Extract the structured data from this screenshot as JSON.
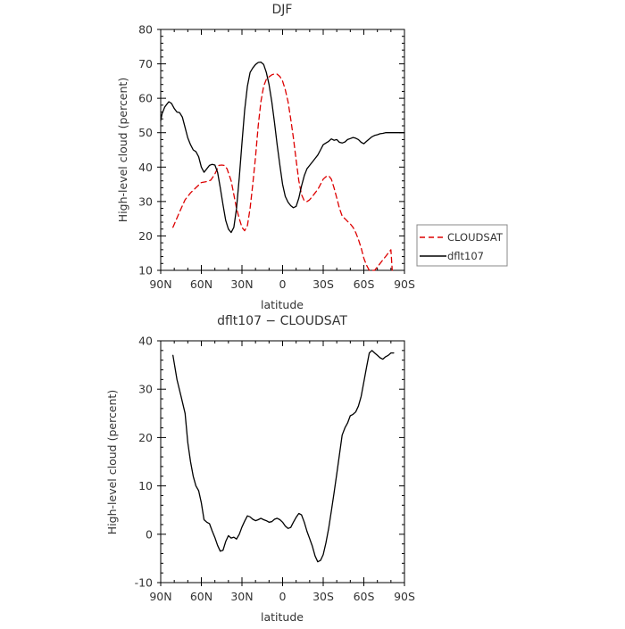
{
  "chart_data": [
    {
      "type": "line",
      "title": "DJF",
      "xlabel": "latitude",
      "ylabel": "High-level cloud (percent)",
      "ylim": [
        10,
        80
      ],
      "xlim": [
        90,
        -90
      ],
      "x_direction": "90N on the left, 90S on the right",
      "xticks": [
        {
          "value": 90,
          "label": "90N"
        },
        {
          "value": 60,
          "label": "60N"
        },
        {
          "value": 30,
          "label": "30N"
        },
        {
          "value": 0,
          "label": "0"
        },
        {
          "value": -30,
          "label": "30S"
        },
        {
          "value": -60,
          "label": "60S"
        },
        {
          "value": -90,
          "label": "90S"
        }
      ],
      "yticks": [
        10,
        20,
        30,
        40,
        50,
        60,
        70,
        80
      ],
      "grid": false,
      "legend_placement": "outside-right",
      "series": [
        {
          "name": "CLOUDSAT",
          "color": "#dd0000",
          "dash": "dashed",
          "x": [
            81,
            76,
            72,
            68,
            64,
            60,
            56,
            53,
            50,
            47,
            45,
            43,
            41,
            38,
            36,
            34,
            32,
            30,
            28,
            26,
            24,
            22,
            20,
            18,
            16,
            14,
            12,
            10,
            8,
            6,
            4,
            2,
            0,
            -2,
            -4,
            -6,
            -8,
            -10,
            -12,
            -14,
            -16,
            -18,
            -20,
            -22,
            -24,
            -26,
            -28,
            -30,
            -32,
            -34,
            -36,
            -38,
            -40,
            -42,
            -44,
            -46,
            -48,
            -50,
            -52,
            -54,
            -56,
            -58,
            -60,
            -62,
            -64,
            -66,
            -68,
            -70,
            -72,
            -74,
            -76,
            -78,
            -80,
            -81
          ],
          "y": [
            22.5,
            27,
            30.5,
            32.5,
            34,
            35.5,
            35.8,
            36.2,
            38,
            40.5,
            40.6,
            40.5,
            39.5,
            36,
            32,
            28,
            25,
            22.5,
            21.5,
            23,
            28,
            35,
            43,
            52,
            59,
            63.5,
            65.5,
            66.2,
            66.8,
            67.1,
            67,
            66.3,
            65,
            62.5,
            59,
            54,
            48.5,
            42,
            36,
            32,
            30.2,
            30,
            30.5,
            31.5,
            32.5,
            33.5,
            35,
            36.5,
            37.2,
            37.5,
            36.5,
            34,
            31,
            28,
            25.8,
            25,
            24.2,
            23.5,
            22.5,
            21,
            19,
            16.5,
            13.5,
            11.5,
            10,
            9.6,
            10,
            11,
            12,
            13,
            14,
            15,
            16,
            10
          ]
        },
        {
          "name": "dflt107",
          "color": "#000000",
          "dash": "solid",
          "x": [
            90,
            89,
            87,
            85,
            84,
            82,
            80,
            78,
            76,
            74,
            72,
            70,
            68,
            66,
            64,
            62,
            60,
            58,
            56,
            54,
            52,
            50,
            48,
            46,
            44,
            42,
            40,
            38,
            36,
            34,
            32,
            30,
            28,
            26,
            24,
            22,
            20,
            18,
            16,
            14,
            12,
            10,
            8,
            6,
            4,
            2,
            0,
            -2,
            -4,
            -6,
            -8,
            -10,
            -12,
            -14,
            -16,
            -18,
            -20,
            -22,
            -24,
            -26,
            -28,
            -30,
            -32,
            -34,
            -36,
            -38,
            -40,
            -42,
            -44,
            -46,
            -48,
            -50,
            -52,
            -54,
            -56,
            -58,
            -60,
            -62,
            -64,
            -66,
            -68,
            -70,
            -72,
            -74,
            -76,
            -78,
            -80,
            -82,
            -84,
            -86,
            -88,
            -90
          ],
          "y": [
            53.5,
            55.5,
            57.5,
            58.5,
            59,
            58.5,
            57,
            56,
            55.8,
            54.5,
            51.5,
            48.5,
            46.5,
            45,
            44.5,
            43,
            40,
            38.5,
            39.5,
            40.5,
            40.8,
            40.6,
            38.5,
            34,
            29,
            24.5,
            22,
            21,
            22.5,
            28,
            37,
            47,
            56.5,
            63.5,
            67.5,
            68.8,
            69.8,
            70.4,
            70.5,
            69.8,
            67.5,
            64,
            59,
            53,
            46.5,
            40.5,
            35,
            31.5,
            29.8,
            28.8,
            28.2,
            28.6,
            31,
            34.5,
            37.5,
            39.5,
            40.5,
            41.5,
            42.5,
            43.5,
            45,
            46.5,
            47,
            47.5,
            48.2,
            47.8,
            48,
            47.2,
            47,
            47.3,
            48,
            48.3,
            48.6,
            48.4,
            48,
            47.2,
            46.8,
            47.5,
            48.2,
            48.8,
            49.2,
            49.4,
            49.7,
            49.8,
            50,
            50,
            50,
            50,
            50,
            50,
            50,
            50
          ]
        }
      ]
    },
    {
      "type": "line",
      "title": "dflt107 − CLOUDSAT",
      "xlabel": "latitude",
      "ylabel": "High-level cloud (percent)",
      "ylim": [
        -10,
        40
      ],
      "xlim": [
        90,
        -90
      ],
      "xticks": [
        {
          "value": 90,
          "label": "90N"
        },
        {
          "value": 60,
          "label": "60N"
        },
        {
          "value": 30,
          "label": "30N"
        },
        {
          "value": 0,
          "label": "0"
        },
        {
          "value": -30,
          "label": "30S"
        },
        {
          "value": -60,
          "label": "60S"
        },
        {
          "value": -90,
          "label": "90S"
        }
      ],
      "yticks": [
        -10,
        0,
        10,
        20,
        30,
        40
      ],
      "grid": false,
      "series": [
        {
          "name": "",
          "color": "#000000",
          "dash": "solid",
          "x": [
            81,
            78,
            75,
            72,
            70,
            68,
            66,
            64,
            62,
            60,
            58,
            56,
            54,
            52,
            50,
            48,
            46,
            44,
            42,
            40,
            38,
            36,
            34,
            32,
            30,
            28,
            26,
            24,
            22,
            20,
            18,
            16,
            14,
            12,
            10,
            8,
            6,
            4,
            2,
            0,
            -2,
            -4,
            -6,
            -8,
            -10,
            -12,
            -14,
            -16,
            -18,
            -20,
            -22,
            -24,
            -26,
            -28,
            -30,
            -32,
            -34,
            -36,
            -38,
            -40,
            -42,
            -44,
            -46,
            -48,
            -50,
            -52,
            -54,
            -56,
            -58,
            -60,
            -62,
            -64,
            -66,
            -68,
            -70,
            -72,
            -74,
            -76,
            -78,
            -80,
            -82
          ],
          "y": [
            37,
            32,
            28.5,
            25,
            19,
            15,
            12,
            10,
            9,
            6.5,
            3,
            2.5,
            2.2,
            0.7,
            -0.7,
            -2.3,
            -3.5,
            -3.3,
            -1.5,
            -0.3,
            -0.8,
            -0.6,
            -1,
            0,
            1.5,
            2.7,
            3.8,
            3.6,
            3.1,
            2.8,
            3,
            3.3,
            3,
            2.8,
            2.5,
            2.6,
            3.1,
            3.3,
            3,
            2.5,
            1.7,
            1.2,
            1.4,
            2.5,
            3.5,
            4.3,
            4,
            2.5,
            0.6,
            -0.9,
            -2.5,
            -4.5,
            -5.7,
            -5.4,
            -4.2,
            -1.8,
            1.2,
            4.8,
            8.5,
            12.5,
            16.5,
            20.5,
            22,
            23,
            24.5,
            24.8,
            25.3,
            26.5,
            28.5,
            31.5,
            34.5,
            37.5,
            38,
            37.5,
            37,
            36.5,
            36.2,
            36.7,
            37,
            37.5,
            37.5
          ]
        }
      ]
    }
  ]
}
